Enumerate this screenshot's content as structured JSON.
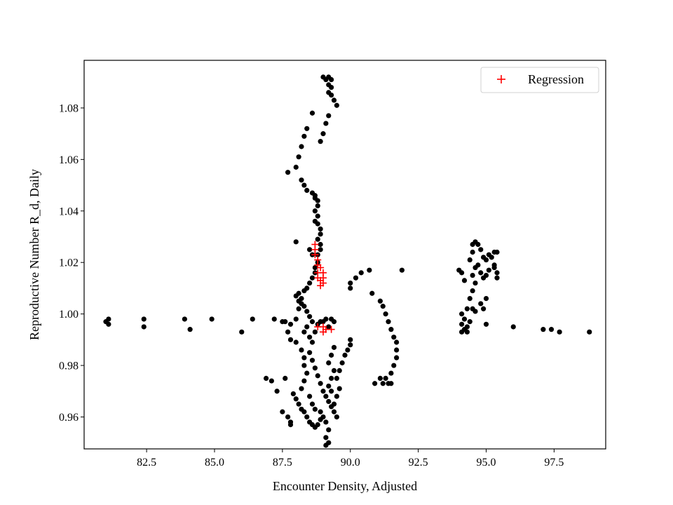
{
  "chart_data": {
    "type": "scatter",
    "xlabel": "Encounter Density, Adjusted",
    "ylabel": "Reproductive Number R_d, Daily",
    "xlim": [
      80.2,
      99.4
    ],
    "ylim": [
      0.9476,
      1.0985
    ],
    "x_ticks": [
      82.5,
      85.0,
      87.5,
      90.0,
      92.5,
      95.0,
      97.5
    ],
    "x_tick_labels": [
      "82.5",
      "85.0",
      "87.5",
      "90.0",
      "92.5",
      "95.0",
      "97.5"
    ],
    "y_ticks": [
      0.96,
      0.98,
      1.0,
      1.02,
      1.04,
      1.06,
      1.08
    ],
    "y_tick_labels": [
      "0.96",
      "0.98",
      "1.00",
      "1.02",
      "1.04",
      "1.06",
      "1.08"
    ],
    "grid": false,
    "legend": {
      "position": "top-right",
      "entries": [
        "Regression"
      ]
    },
    "series": [
      {
        "marker": "circle",
        "color": "#000000",
        "points": [
          [
            81.0,
            0.997
          ],
          [
            81.1,
            0.996
          ],
          [
            81.1,
            0.998
          ],
          [
            82.4,
            0.998
          ],
          [
            82.4,
            0.995
          ],
          [
            83.9,
            0.998
          ],
          [
            84.1,
            0.994
          ],
          [
            84.9,
            0.998
          ],
          [
            86.0,
            0.993
          ],
          [
            86.4,
            0.998
          ],
          [
            86.9,
            0.975
          ],
          [
            87.1,
            0.974
          ],
          [
            87.3,
            0.97
          ],
          [
            87.5,
            0.962
          ],
          [
            87.6,
            0.975
          ],
          [
            87.7,
            0.96
          ],
          [
            87.8,
            0.958
          ],
          [
            87.8,
            0.957
          ],
          [
            87.2,
            0.998
          ],
          [
            87.5,
            0.997
          ],
          [
            87.6,
            0.997
          ],
          [
            87.8,
            0.996
          ],
          [
            88.0,
            0.998
          ],
          [
            87.7,
            0.993
          ],
          [
            87.8,
            0.99
          ],
          [
            88.0,
            0.989
          ],
          [
            87.9,
            0.969
          ],
          [
            88.0,
            0.967
          ],
          [
            88.1,
            0.965
          ],
          [
            88.2,
            0.963
          ],
          [
            87.7,
            1.055
          ],
          [
            88.0,
            1.057
          ],
          [
            88.1,
            1.061
          ],
          [
            88.2,
            1.065
          ],
          [
            88.3,
            1.069
          ],
          [
            88.4,
            1.072
          ],
          [
            88.6,
            1.078
          ],
          [
            88.2,
            1.052
          ],
          [
            88.3,
            1.05
          ],
          [
            88.4,
            1.048
          ],
          [
            88.6,
            1.047
          ],
          [
            88.7,
            1.046
          ],
          [
            88.7,
            1.045
          ],
          [
            88.8,
            1.044
          ],
          [
            88.8,
            1.042
          ],
          [
            88.7,
            1.04
          ],
          [
            88.8,
            1.038
          ],
          [
            88.7,
            1.036
          ],
          [
            88.8,
            1.035
          ],
          [
            88.9,
            1.033
          ],
          [
            88.9,
            1.031
          ],
          [
            88.8,
            1.029
          ],
          [
            88.9,
            1.027
          ],
          [
            88.9,
            1.025
          ],
          [
            88.8,
            1.023
          ],
          [
            88.8,
            1.02
          ],
          [
            88.7,
            1.018
          ],
          [
            88.7,
            1.016
          ],
          [
            88.6,
            1.014
          ],
          [
            88.5,
            1.012
          ],
          [
            88.4,
            1.01
          ],
          [
            88.3,
            1.009
          ],
          [
            88.1,
            1.008
          ],
          [
            88.0,
            1.007
          ],
          [
            88.2,
            1.006
          ],
          [
            88.1,
            1.005
          ],
          [
            88.2,
            1.004
          ],
          [
            88.3,
            1.003
          ],
          [
            88.1,
            1.002
          ],
          [
            88.0,
            1.028
          ],
          [
            88.5,
            1.025
          ],
          [
            88.6,
            1.023
          ],
          [
            88.4,
            1.001
          ],
          [
            88.5,
            0.999
          ],
          [
            88.6,
            0.997
          ],
          [
            88.4,
            0.995
          ],
          [
            88.3,
            0.993
          ],
          [
            88.5,
            0.991
          ],
          [
            88.6,
            0.989
          ],
          [
            88.7,
            0.993
          ],
          [
            88.8,
            0.996
          ],
          [
            88.9,
            0.997
          ],
          [
            89.0,
            0.997
          ],
          [
            89.1,
            0.998
          ],
          [
            89.3,
            0.998
          ],
          [
            89.4,
            0.997
          ],
          [
            89.2,
            0.995
          ],
          [
            88.2,
            0.986
          ],
          [
            88.3,
            0.983
          ],
          [
            88.3,
            0.98
          ],
          [
            88.4,
            0.977
          ],
          [
            88.3,
            0.974
          ],
          [
            88.2,
            0.971
          ],
          [
            88.5,
            0.968
          ],
          [
            88.6,
            0.965
          ],
          [
            88.7,
            0.963
          ],
          [
            88.9,
            0.962
          ],
          [
            89.0,
            0.96
          ],
          [
            89.1,
            0.958
          ],
          [
            89.2,
            0.955
          ],
          [
            89.1,
            0.952
          ],
          [
            89.2,
            0.95
          ],
          [
            89.1,
            0.949
          ],
          [
            88.3,
            0.962
          ],
          [
            88.4,
            0.96
          ],
          [
            88.5,
            0.958
          ],
          [
            88.6,
            0.957
          ],
          [
            88.7,
            0.956
          ],
          [
            88.8,
            0.957
          ],
          [
            88.9,
            0.959
          ],
          [
            88.5,
            0.985
          ],
          [
            88.6,
            0.982
          ],
          [
            88.7,
            0.979
          ],
          [
            88.8,
            0.976
          ],
          [
            88.9,
            0.973
          ],
          [
            89.0,
            0.97
          ],
          [
            89.1,
            0.968
          ],
          [
            89.2,
            0.966
          ],
          [
            89.3,
            0.964
          ],
          [
            89.4,
            0.962
          ],
          [
            89.5,
            0.96
          ],
          [
            89.4,
            0.965
          ],
          [
            89.5,
            0.968
          ],
          [
            89.6,
            0.971
          ],
          [
            89.5,
            0.975
          ],
          [
            89.6,
            0.978
          ],
          [
            89.7,
            0.981
          ],
          [
            89.8,
            0.984
          ],
          [
            89.9,
            0.986
          ],
          [
            90.0,
            0.988
          ],
          [
            90.0,
            0.99
          ],
          [
            89.3,
            0.97
          ],
          [
            89.2,
            0.972
          ],
          [
            89.3,
            0.975
          ],
          [
            89.4,
            0.978
          ],
          [
            89.2,
            0.981
          ],
          [
            89.3,
            0.984
          ],
          [
            89.4,
            0.987
          ],
          [
            89.0,
            1.092
          ],
          [
            89.1,
            1.091
          ],
          [
            89.2,
            1.092
          ],
          [
            89.3,
            1.091
          ],
          [
            89.2,
            1.089
          ],
          [
            89.3,
            1.088
          ],
          [
            89.2,
            1.086
          ],
          [
            89.3,
            1.085
          ],
          [
            89.4,
            1.083
          ],
          [
            89.5,
            1.081
          ],
          [
            89.2,
            1.077
          ],
          [
            89.1,
            1.074
          ],
          [
            89.0,
            1.07
          ],
          [
            88.9,
            1.067
          ],
          [
            90.0,
            1.012
          ],
          [
            90.0,
            1.01
          ],
          [
            90.2,
            1.014
          ],
          [
            90.4,
            1.016
          ],
          [
            90.7,
            1.017
          ],
          [
            90.8,
            1.008
          ],
          [
            91.1,
            1.005
          ],
          [
            91.2,
            1.003
          ],
          [
            91.3,
            1.0
          ],
          [
            91.4,
            0.997
          ],
          [
            91.5,
            0.994
          ],
          [
            91.6,
            0.991
          ],
          [
            91.7,
            0.989
          ],
          [
            91.7,
            0.986
          ],
          [
            91.7,
            0.983
          ],
          [
            91.6,
            0.98
          ],
          [
            91.5,
            0.977
          ],
          [
            91.3,
            0.975
          ],
          [
            91.2,
            0.973
          ],
          [
            91.4,
            0.973
          ],
          [
            91.5,
            0.973
          ],
          [
            91.1,
            0.975
          ],
          [
            91.9,
            1.017
          ],
          [
            90.9,
            0.973
          ],
          [
            94.1,
            1.0
          ],
          [
            94.2,
            0.998
          ],
          [
            94.1,
            0.996
          ],
          [
            94.2,
            0.994
          ],
          [
            94.3,
            0.993
          ],
          [
            94.1,
            0.993
          ],
          [
            94.3,
            0.995
          ],
          [
            94.4,
            0.997
          ],
          [
            94.3,
            1.002
          ],
          [
            94.4,
            1.006
          ],
          [
            94.5,
            1.009
          ],
          [
            94.6,
            1.012
          ],
          [
            94.5,
            1.015
          ],
          [
            94.6,
            1.018
          ],
          [
            94.4,
            1.021
          ],
          [
            94.5,
            1.024
          ],
          [
            94.5,
            1.027
          ],
          [
            94.6,
            1.028
          ],
          [
            94.7,
            1.027
          ],
          [
            94.8,
            1.025
          ],
          [
            94.9,
            1.022
          ],
          [
            94.7,
            1.019
          ],
          [
            94.8,
            1.016
          ],
          [
            94.9,
            1.014
          ],
          [
            95.0,
            1.015
          ],
          [
            95.1,
            1.017
          ],
          [
            95.3,
            1.018
          ],
          [
            95.4,
            1.016
          ],
          [
            95.4,
            1.014
          ],
          [
            95.3,
            1.019
          ],
          [
            95.2,
            1.022
          ],
          [
            95.3,
            1.024
          ],
          [
            95.4,
            1.024
          ],
          [
            95.1,
            1.023
          ],
          [
            95.0,
            1.021
          ],
          [
            94.8,
            1.004
          ],
          [
            94.9,
            1.002
          ],
          [
            95.0,
            1.006
          ],
          [
            94.0,
            1.017
          ],
          [
            94.1,
            1.016
          ],
          [
            95.0,
            0.996
          ],
          [
            96.0,
            0.995
          ],
          [
            97.1,
            0.994
          ],
          [
            97.4,
            0.994
          ],
          [
            97.7,
            0.993
          ],
          [
            98.8,
            0.993
          ],
          [
            94.5,
            1.002
          ],
          [
            94.6,
            1.001
          ],
          [
            94.2,
            1.013
          ]
        ]
      },
      {
        "name": "Regression",
        "marker": "plus",
        "color": "#ff0000",
        "points": [
          [
            88.7,
            1.027
          ],
          [
            88.7,
            1.025
          ],
          [
            88.7,
            1.023
          ],
          [
            88.8,
            1.021
          ],
          [
            88.8,
            1.019
          ],
          [
            88.9,
            1.018
          ],
          [
            88.8,
            1.016
          ],
          [
            89.0,
            1.016
          ],
          [
            88.8,
            1.014
          ],
          [
            89.0,
            1.014
          ],
          [
            88.9,
            1.013
          ],
          [
            89.0,
            1.012
          ],
          [
            88.9,
            1.011
          ],
          [
            88.8,
            0.995
          ],
          [
            89.0,
            0.995
          ],
          [
            89.1,
            0.994
          ],
          [
            89.3,
            0.994
          ],
          [
            89.0,
            0.993
          ]
        ]
      }
    ]
  }
}
